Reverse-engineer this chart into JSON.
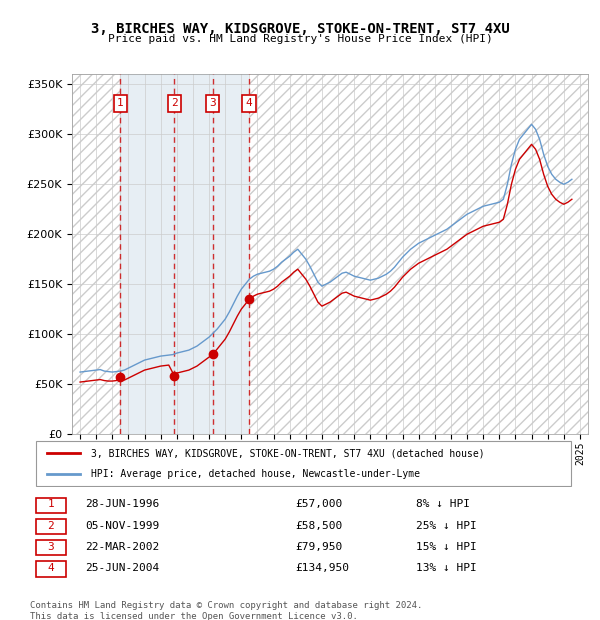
{
  "title": "3, BIRCHES WAY, KIDSGROVE, STOKE-ON-TRENT, ST7 4XU",
  "subtitle": "Price paid vs. HM Land Registry's House Price Index (HPI)",
  "ylabel": "",
  "ylim": [
    0,
    360000
  ],
  "yticks": [
    0,
    50000,
    100000,
    150000,
    200000,
    250000,
    300000,
    350000
  ],
  "ytick_labels": [
    "£0",
    "£50K",
    "£100K",
    "£150K",
    "£200K",
    "£250K",
    "£300K",
    "£350K"
  ],
  "xlim_start": 1993.5,
  "xlim_end": 2025.5,
  "sale_dates": [
    1996.49,
    1999.84,
    2002.22,
    2004.48
  ],
  "sale_prices": [
    57000,
    58500,
    79950,
    134950
  ],
  "sale_labels": [
    "1",
    "2",
    "3",
    "4"
  ],
  "sale_color": "#cc0000",
  "hpi_color": "#6699cc",
  "background_hatch_color": "#cccccc",
  "sale_region_color": "#dde8f0",
  "grid_color": "#cccccc",
  "legend_entries": [
    "3, BIRCHES WAY, KIDSGROVE, STOKE-ON-TRENT, ST7 4XU (detached house)",
    "HPI: Average price, detached house, Newcastle-under-Lyme"
  ],
  "table_rows": [
    [
      "1",
      "28-JUN-1996",
      "£57,000",
      "8% ↓ HPI"
    ],
    [
      "2",
      "05-NOV-1999",
      "£58,500",
      "25% ↓ HPI"
    ],
    [
      "3",
      "22-MAR-2002",
      "£79,950",
      "15% ↓ HPI"
    ],
    [
      "4",
      "25-JUN-2004",
      "£134,950",
      "13% ↓ HPI"
    ]
  ],
  "footer": "Contains HM Land Registry data © Crown copyright and database right 2024.\nThis data is licensed under the Open Government Licence v3.0.",
  "hpi_data_x": [
    1994,
    1994.25,
    1994.5,
    1994.75,
    1995,
    1995.25,
    1995.5,
    1995.75,
    1996,
    1996.25,
    1996.5,
    1996.75,
    1997,
    1997.25,
    1997.5,
    1997.75,
    1998,
    1998.25,
    1998.5,
    1998.75,
    1999,
    1999.25,
    1999.5,
    1999.75,
    2000,
    2000.25,
    2000.5,
    2000.75,
    2001,
    2001.25,
    2001.5,
    2001.75,
    2002,
    2002.25,
    2002.5,
    2002.75,
    2003,
    2003.25,
    2003.5,
    2003.75,
    2004,
    2004.25,
    2004.5,
    2004.75,
    2005,
    2005.25,
    2005.5,
    2005.75,
    2006,
    2006.25,
    2006.5,
    2006.75,
    2007,
    2007.25,
    2007.5,
    2007.75,
    2008,
    2008.25,
    2008.5,
    2008.75,
    2009,
    2009.25,
    2009.5,
    2009.75,
    2010,
    2010.25,
    2010.5,
    2010.75,
    2011,
    2011.25,
    2011.5,
    2011.75,
    2012,
    2012.25,
    2012.5,
    2012.75,
    2013,
    2013.25,
    2013.5,
    2013.75,
    2014,
    2014.25,
    2014.5,
    2014.75,
    2015,
    2015.25,
    2015.5,
    2015.75,
    2016,
    2016.25,
    2016.5,
    2016.75,
    2017,
    2017.25,
    2017.5,
    2017.75,
    2018,
    2018.25,
    2018.5,
    2018.75,
    2019,
    2019.25,
    2019.5,
    2019.75,
    2020,
    2020.25,
    2020.5,
    2020.75,
    2021,
    2021.25,
    2021.5,
    2021.75,
    2022,
    2022.25,
    2022.5,
    2022.75,
    2023,
    2023.25,
    2023.5,
    2023.75,
    2024,
    2024.25,
    2024.5
  ],
  "hpi_data_y": [
    62000,
    62500,
    63000,
    63500,
    64000,
    64500,
    63000,
    62500,
    62000,
    62500,
    63000,
    64000,
    66000,
    68000,
    70000,
    72000,
    74000,
    75000,
    76000,
    77000,
    78000,
    78500,
    79000,
    79500,
    81000,
    82000,
    83000,
    84000,
    86000,
    88000,
    91000,
    94000,
    97000,
    101000,
    105000,
    110000,
    115000,
    122000,
    130000,
    138000,
    145000,
    150000,
    155000,
    158000,
    160000,
    161000,
    162000,
    163000,
    165000,
    168000,
    172000,
    175000,
    178000,
    182000,
    185000,
    180000,
    175000,
    168000,
    160000,
    152000,
    148000,
    150000,
    152000,
    155000,
    158000,
    161000,
    162000,
    160000,
    158000,
    157000,
    156000,
    155000,
    154000,
    155000,
    156000,
    158000,
    160000,
    163000,
    167000,
    172000,
    177000,
    181000,
    185000,
    188000,
    191000,
    193000,
    195000,
    197000,
    199000,
    201000,
    203000,
    205000,
    208000,
    211000,
    214000,
    217000,
    220000,
    222000,
    224000,
    226000,
    228000,
    229000,
    230000,
    231000,
    232000,
    235000,
    250000,
    270000,
    285000,
    295000,
    300000,
    305000,
    310000,
    305000,
    295000,
    280000,
    268000,
    260000,
    255000,
    252000,
    250000,
    252000,
    255000
  ],
  "red_line_x": [
    1994,
    1994.25,
    1994.5,
    1994.75,
    1995,
    1995.25,
    1995.5,
    1995.75,
    1996,
    1996.25,
    1996.49,
    1996.75,
    1997,
    1997.25,
    1997.5,
    1997.75,
    1998,
    1998.25,
    1998.5,
    1998.75,
    1999,
    1999.25,
    1999.5,
    1999.84,
    2000,
    2000.25,
    2000.5,
    2000.75,
    2001,
    2001.25,
    2001.5,
    2001.75,
    2002,
    2002.22,
    2002.5,
    2002.75,
    2003,
    2003.25,
    2003.5,
    2003.75,
    2004,
    2004.25,
    2004.48,
    2004.75,
    2005,
    2005.25,
    2005.5,
    2005.75,
    2006,
    2006.25,
    2006.5,
    2006.75,
    2007,
    2007.25,
    2007.5,
    2007.75,
    2008,
    2008.25,
    2008.5,
    2008.75,
    2009,
    2009.25,
    2009.5,
    2009.75,
    2010,
    2010.25,
    2010.5,
    2010.75,
    2011,
    2011.25,
    2011.5,
    2011.75,
    2012,
    2012.25,
    2012.5,
    2012.75,
    2013,
    2013.25,
    2013.5,
    2013.75,
    2014,
    2014.25,
    2014.5,
    2014.75,
    2015,
    2015.25,
    2015.5,
    2015.75,
    2016,
    2016.25,
    2016.5,
    2016.75,
    2017,
    2017.25,
    2017.5,
    2017.75,
    2018,
    2018.25,
    2018.5,
    2018.75,
    2019,
    2019.25,
    2019.5,
    2019.75,
    2020,
    2020.25,
    2020.5,
    2020.75,
    2021,
    2021.25,
    2021.5,
    2021.75,
    2022,
    2022.25,
    2022.5,
    2022.75,
    2023,
    2023.25,
    2023.5,
    2023.75,
    2024,
    2024.25,
    2024.5
  ],
  "red_line_y": [
    52000,
    52500,
    53000,
    53500,
    54000,
    54500,
    53500,
    53000,
    53000,
    53500,
    57000,
    54000,
    56000,
    58000,
    60000,
    62000,
    64000,
    65000,
    66000,
    67000,
    68000,
    68500,
    69000,
    58500,
    61000,
    62000,
    63000,
    64000,
    66000,
    68000,
    71000,
    74000,
    77000,
    79950,
    85000,
    90000,
    95000,
    102000,
    110000,
    118000,
    125000,
    130000,
    134950,
    138000,
    140000,
    141000,
    142000,
    143000,
    145000,
    148000,
    152000,
    155000,
    158000,
    162000,
    165000,
    160000,
    155000,
    148000,
    140000,
    132000,
    128000,
    130000,
    132000,
    135000,
    138000,
    141000,
    142000,
    140000,
    138000,
    137000,
    136000,
    135000,
    134000,
    135000,
    136000,
    138000,
    140000,
    143000,
    147000,
    152000,
    157000,
    161000,
    165000,
    168000,
    171000,
    173000,
    175000,
    177000,
    179000,
    181000,
    183000,
    185000,
    188000,
    191000,
    194000,
    197000,
    200000,
    202000,
    204000,
    206000,
    208000,
    209000,
    210000,
    211000,
    212000,
    215000,
    230000,
    250000,
    265000,
    275000,
    280000,
    285000,
    290000,
    285000,
    275000,
    260000,
    248000,
    240000,
    235000,
    232000,
    230000,
    232000,
    235000
  ]
}
